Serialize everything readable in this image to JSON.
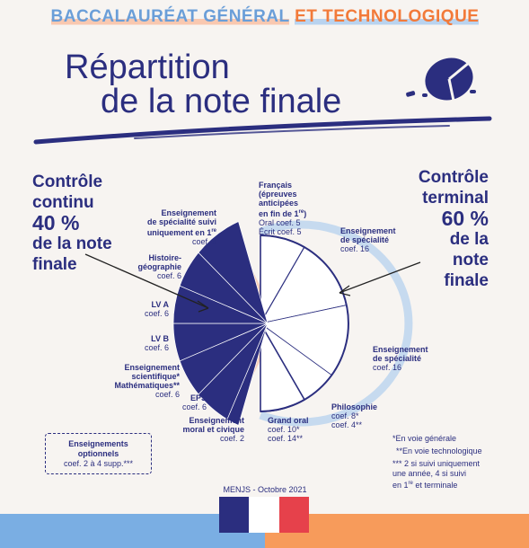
{
  "header": {
    "part1": "BACCALAURÉAT GÉNÉRAL",
    "part2": "ET TECHNOLOGIQUE"
  },
  "title": {
    "line1": "Répartition",
    "line2": "de la note finale"
  },
  "continuous": {
    "line1": "Contrôle",
    "line2": "continu",
    "percent": "40 %",
    "line4": "de la note",
    "line5": "finale"
  },
  "terminal": {
    "line1": "Contrôle",
    "line2": "terminal",
    "percent": "60 %",
    "line4": "de la",
    "line5": "note",
    "line6": "finale"
  },
  "chart_data": {
    "type": "pie",
    "title": "Répartition de la note finale",
    "groups": [
      {
        "name": "Contrôle continu",
        "percent": 40,
        "color": "#2b2e7f"
      },
      {
        "name": "Contrôle terminal",
        "percent": 60,
        "color": "#ffffff"
      }
    ],
    "slices": [
      {
        "group": "Contrôle terminal",
        "label": "Français (épreuves anticipées en fin de 1re)",
        "detail1": "Oral coef. 5",
        "detail2": "Écrit coef. 5",
        "value": 10
      },
      {
        "group": "Contrôle terminal",
        "label": "Enseignement de spécialité",
        "detail1": "coef. 16",
        "value": 16
      },
      {
        "group": "Contrôle terminal",
        "label": "Enseignement de spécialité",
        "detail1": "coef. 16",
        "value": 16
      },
      {
        "group": "Contrôle terminal",
        "label": "Philosophie",
        "detail1": "coef. 8*",
        "detail2": "coef. 4**",
        "value": 8
      },
      {
        "group": "Contrôle terminal",
        "label": "Grand oral",
        "detail1": "coef. 10*",
        "detail2": "coef. 14**",
        "value": 10
      },
      {
        "group": "Contrôle continu",
        "label": "Enseignement moral et civique",
        "detail1": "coef. 2",
        "value": 2
      },
      {
        "group": "Contrôle continu",
        "label": "EPS",
        "detail1": "coef. 6",
        "value": 6
      },
      {
        "group": "Contrôle continu",
        "label": "Enseignement scientifique* Mathématiques**",
        "detail1": "coef. 6",
        "value": 6
      },
      {
        "group": "Contrôle continu",
        "label": "LV B",
        "detail1": "coef. 6",
        "value": 6
      },
      {
        "group": "Contrôle continu",
        "label": "LV A",
        "detail1": "coef. 6",
        "value": 6
      },
      {
        "group": "Contrôle continu",
        "label": "Histoire-géographie",
        "detail1": "coef. 6",
        "value": 6
      },
      {
        "group": "Contrôle continu",
        "label": "Enseignement de spécialité suivi uniquement en 1re",
        "detail1": "coef. 8",
        "value": 8
      }
    ]
  },
  "labels": {
    "francais": {
      "l1": "Français",
      "l2": "(épreuves",
      "l3": "anticipées",
      "l4": "en fin de 1",
      "sup": "re",
      "l5": ")",
      "l6": "Oral coef. 5",
      "l7": "Écrit coef. 5"
    },
    "spe1": {
      "l1": "Enseignement",
      "l2": "de spécialité",
      "l3": "coef. 16"
    },
    "spe2": {
      "l1": "Enseignement",
      "l2": "de spécialité",
      "l3": "coef. 16"
    },
    "philo": {
      "l1": "Philosophie",
      "l2": "coef. 8*",
      "l3": "coef. 4**"
    },
    "grandoral": {
      "l1": "Grand oral",
      "l2": "coef. 10*",
      "l3": "coef. 14**"
    },
    "emc": {
      "l1": "Enseignement",
      "l2": "moral et civique",
      "l3": "coef. 2"
    },
    "eps": {
      "l1": "EPS",
      "l2": "coef. 6"
    },
    "sci": {
      "l1": "Enseignement",
      "l2": "scientifique*",
      "l3": "Mathématiques**",
      "l4": "coef. 6"
    },
    "lvb": {
      "l1": "LV B",
      "l2": "coef. 6"
    },
    "lva": {
      "l1": "LV A",
      "l2": "coef. 6"
    },
    "hg": {
      "l1": "Histoire-",
      "l2": "géographie",
      "l3": "coef. 6"
    },
    "spe1re": {
      "l1": "Enseignement",
      "l2": "de spécialité suivi",
      "l3": "uniquement en 1",
      "sup": "re",
      "l4": "coef. 8"
    }
  },
  "optional": {
    "l1": "Enseignements",
    "l2": "optionnels",
    "l3": "coef. 2 à 4 supp.***"
  },
  "notes": {
    "n1": "*En voie générale",
    "n2": "**En voie technologique",
    "n3": "*** 2 si suivi uniquement",
    "n4": "une année, 4 si suivi",
    "n5": "en 1",
    "n5sup": "re",
    "n5b": " et terminale"
  },
  "credit": "MENJS - Octobre 2021",
  "colors": {
    "navy": "#2b2e7f",
    "blue": "#6a9ed8",
    "orange": "#f27a3a",
    "peach": "#f9c8b0"
  }
}
